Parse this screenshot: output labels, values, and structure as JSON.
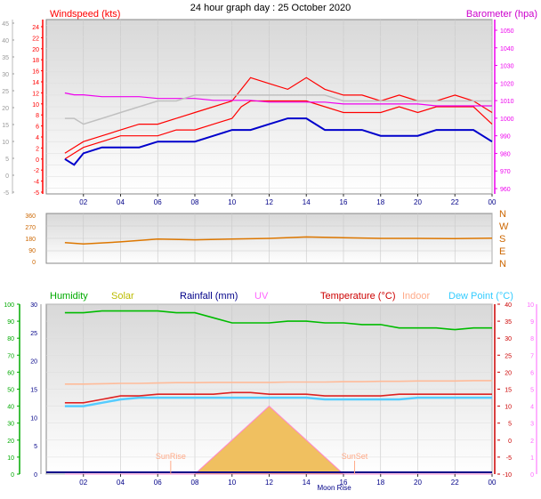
{
  "title": "24 hour graph day : 25 October 2020",
  "x_ticks": [
    "02",
    "04",
    "06",
    "08",
    "10",
    "12",
    "14",
    "16",
    "18",
    "20",
    "22",
    "00"
  ],
  "chart_data": [
    {
      "type": "line",
      "name": "wind-baro",
      "left_axis_label": "Windspeed (kts)",
      "right_axis_label": "Barometer (hpa)",
      "left_ylim": [
        -5,
        25
      ],
      "left_ticks": [
        "-5",
        "-4",
        "-2",
        "0",
        "2",
        "4",
        "6",
        "8",
        "10",
        "12",
        "14",
        "16",
        "18",
        "20",
        "22",
        "24"
      ],
      "outer_ticks": [
        "-5",
        "0",
        "5",
        "10",
        "15",
        "20",
        "25",
        "30",
        "35",
        "40",
        "45"
      ],
      "right_ylim": [
        955,
        1050
      ],
      "right_ticks": [
        "960",
        "970",
        "980",
        "990",
        "1000",
        "1010",
        "1020",
        "1030",
        "1040",
        "1050"
      ],
      "x_hours": [
        1,
        1.5,
        2,
        3,
        4,
        5,
        6,
        7,
        8,
        9,
        10,
        10.5,
        11,
        12,
        13,
        14,
        15,
        16,
        17,
        18,
        19,
        20,
        21,
        22,
        23,
        24
      ],
      "series": [
        {
          "key": "gust",
          "color": "#ff0000",
          "values": [
            2,
            3,
            4,
            5,
            6,
            7,
            7,
            8,
            9,
            10,
            11,
            13,
            15,
            14,
            13,
            15,
            13,
            12,
            12,
            11,
            12,
            11,
            11,
            12,
            11,
            9
          ]
        },
        {
          "key": "avg",
          "color": "#ff0000",
          "values": [
            1,
            2,
            3,
            4,
            5,
            5,
            5,
            6,
            6,
            7,
            8,
            10,
            11,
            11,
            11,
            11,
            10,
            9,
            9,
            9,
            10,
            9,
            10,
            10,
            10,
            7
          ]
        },
        {
          "key": "windspeed",
          "color": "#0000cc",
          "values": [
            1,
            0,
            2,
            3,
            3,
            3,
            4,
            4,
            4,
            5,
            6,
            6,
            6,
            7,
            8,
            8,
            6,
            6,
            6,
            5,
            5,
            5,
            6,
            6,
            6,
            4
          ]
        },
        {
          "key": "barometer",
          "color": "#ee00ee",
          "values": [
            1010,
            1009,
            1009,
            1008,
            1008,
            1008,
            1007,
            1007,
            1007,
            1006,
            1006,
            1006,
            1006,
            1005,
            1005,
            1005,
            1005,
            1004,
            1004,
            1004,
            1004,
            1004,
            1003,
            1003,
            1003,
            1003
          ]
        },
        {
          "key": "wind-trace",
          "color": "#c0c0c0",
          "values": [
            8,
            8,
            7,
            8,
            9,
            10,
            11,
            11,
            12,
            12,
            12,
            12,
            12,
            12,
            12,
            12,
            12,
            11,
            11,
            11,
            11,
            11,
            11,
            11,
            11,
            11
          ]
        }
      ]
    },
    {
      "type": "line",
      "name": "wind-direction",
      "left_ticks": [
        "360",
        "270",
        "180",
        "90",
        "0"
      ],
      "right_labels": [
        "N",
        "W",
        "S",
        "E",
        "N"
      ],
      "ylim": [
        0,
        360
      ],
      "x_hours": [
        1,
        2,
        4,
        6,
        8,
        10,
        12,
        14,
        16,
        18,
        20,
        22,
        24
      ],
      "values": [
        150,
        140,
        155,
        175,
        170,
        175,
        180,
        190,
        185,
        180,
        180,
        178,
        182
      ],
      "color": "#dd7700"
    },
    {
      "type": "line",
      "name": "temp-humidity",
      "legend": [
        {
          "label": "Humidity",
          "color": "#00aa00"
        },
        {
          "label": "Solar",
          "color": "#bbbb00"
        },
        {
          "label": "Rainfall (mm)",
          "color": "#000088"
        },
        {
          "label": "UV",
          "color": "#ff66ff"
        },
        {
          "label": "Temperature (°C)",
          "color": "#cc0000"
        },
        {
          "label": "Indoor",
          "color": "#ffaa88"
        },
        {
          "label": "Dew Point (°C)",
          "color": "#33ccff"
        }
      ],
      "outer_left_ticks": [
        "0",
        "10",
        "20",
        "30",
        "40",
        "50",
        "60",
        "70",
        "80",
        "90",
        "100"
      ],
      "inner_left_ticks": [
        "0",
        "5",
        "10",
        "15",
        "20",
        "25",
        "30"
      ],
      "right_ticks": [
        "-10",
        "-5",
        "0",
        "5",
        "10",
        "15",
        "20",
        "25",
        "30",
        "35",
        "40"
      ],
      "uv_ticks": [
        "0",
        "1",
        "2",
        "3",
        "4",
        "5",
        "6",
        "7",
        "8",
        "9",
        "10"
      ],
      "annotations": [
        "SunRise",
        "SunSet",
        "Moon Rise"
      ],
      "x_hours": [
        1,
        2,
        3,
        4,
        5,
        6,
        7,
        8,
        9,
        10,
        11,
        12,
        13,
        14,
        15,
        16,
        17,
        18,
        19,
        20,
        21,
        22,
        23,
        24
      ],
      "series": [
        {
          "key": "humidity",
          "unit": "%",
          "color": "#00bb00",
          "values": [
            95,
            95,
            96,
            96,
            96,
            96,
            95,
            95,
            92,
            89,
            89,
            89,
            90,
            90,
            89,
            89,
            88,
            88,
            86,
            86,
            86,
            85,
            86,
            86
          ]
        },
        {
          "key": "indoor",
          "unit": "°C",
          "color": "#ffbb99",
          "values": [
            16.5,
            16.5,
            16.6,
            16.7,
            16.7,
            16.8,
            16.9,
            16.9,
            17,
            17,
            17,
            17,
            17.1,
            17.1,
            17.1,
            17.2,
            17.2,
            17.3,
            17.3,
            17.4,
            17.4,
            17.4,
            17.5,
            17.5
          ]
        },
        {
          "key": "temperature",
          "unit": "°C",
          "color": "#dd2222",
          "values": [
            11,
            11,
            12,
            13,
            13,
            13.5,
            13.5,
            13.5,
            13.5,
            14,
            14,
            13.5,
            13.5,
            13.5,
            13,
            13,
            13,
            13,
            13.5,
            13.5,
            13.5,
            13.5,
            13.5,
            13.5
          ]
        },
        {
          "key": "dewpoint",
          "unit": "°C",
          "color": "#55ccff",
          "values": [
            10,
            10,
            11,
            12,
            12.5,
            12.5,
            12.5,
            12.5,
            12.5,
            12.5,
            12.5,
            12.5,
            12.5,
            12.5,
            12,
            12,
            12,
            12,
            12,
            12.5,
            12.5,
            12.5,
            12.5,
            12.5
          ]
        },
        {
          "key": "solar",
          "unit": "W/m2",
          "color": "#ddbb33",
          "values": [
            0,
            0,
            0,
            0,
            0,
            0,
            0,
            0,
            1,
            2,
            3,
            4,
            3,
            2,
            1,
            0,
            0,
            0,
            0,
            0,
            0,
            0,
            0,
            0
          ]
        }
      ]
    }
  ]
}
